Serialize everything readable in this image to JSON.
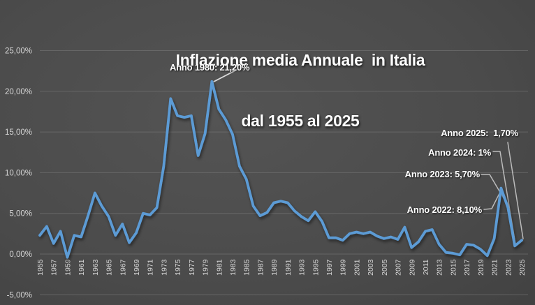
{
  "title": {
    "line1": "Inflazione media Annuale  in Italia",
    "line2": "dal 1955 al 2025"
  },
  "chart_data": {
    "type": "line",
    "series_name": "Inflazione media annuale in Italia",
    "x": [
      1955,
      1956,
      1957,
      1958,
      1959,
      1960,
      1961,
      1962,
      1963,
      1964,
      1965,
      1966,
      1967,
      1968,
      1969,
      1970,
      1971,
      1972,
      1973,
      1974,
      1975,
      1976,
      1977,
      1978,
      1979,
      1980,
      1981,
      1982,
      1983,
      1984,
      1985,
      1986,
      1987,
      1988,
      1989,
      1990,
      1991,
      1992,
      1993,
      1994,
      1995,
      1996,
      1997,
      1998,
      1999,
      2000,
      2001,
      2002,
      2003,
      2004,
      2005,
      2006,
      2007,
      2008,
      2009,
      2010,
      2011,
      2012,
      2013,
      2014,
      2015,
      2016,
      2017,
      2018,
      2019,
      2020,
      2021,
      2022,
      2023,
      2024,
      2025
    ],
    "values": [
      2.3,
      3.4,
      1.3,
      2.8,
      -0.4,
      2.3,
      2.1,
      4.7,
      7.5,
      5.9,
      4.6,
      2.3,
      3.7,
      1.4,
      2.6,
      5.0,
      4.8,
      5.7,
      10.8,
      19.1,
      17.0,
      16.8,
      17.0,
      12.1,
      14.8,
      21.2,
      17.8,
      16.5,
      14.7,
      10.8,
      9.2,
      5.9,
      4.7,
      5.1,
      6.3,
      6.5,
      6.3,
      5.3,
      4.6,
      4.1,
      5.2,
      4.0,
      2.0,
      2.0,
      1.7,
      2.5,
      2.7,
      2.5,
      2.7,
      2.2,
      1.9,
      2.1,
      1.8,
      3.3,
      0.8,
      1.5,
      2.8,
      3.0,
      1.2,
      0.2,
      0.1,
      -0.1,
      1.2,
      1.1,
      0.6,
      -0.2,
      1.9,
      8.1,
      5.7,
      1.0,
      1.7
    ],
    "title": "Inflazione media Annuale in Italia dal 1955 al 2025",
    "xlabel": "",
    "ylabel": "",
    "ylim": [
      -5,
      25
    ],
    "grid": true,
    "legend_position": "none",
    "y_axis": {
      "tick_labels": [
        "25,00%",
        "20,00%",
        "15,00%",
        "10,00%",
        "5,00%",
        "0,00%",
        "-5,00%"
      ],
      "tick_values": [
        25,
        20,
        15,
        10,
        5,
        0,
        -5
      ]
    },
    "x_axis": {
      "tick_labels": [
        "1955",
        "1957",
        "1959",
        "1961",
        "1963",
        "1965",
        "1967",
        "1969",
        "1971",
        "1973",
        "1975",
        "1977",
        "1979",
        "1981",
        "1983",
        "1985",
        "1987",
        "1989",
        "1991",
        "1993",
        "1995",
        "1997",
        "1999",
        "2001",
        "2003",
        "2005",
        "2007",
        "2009",
        "2011",
        "2013",
        "2015",
        "2017",
        "2019",
        "2021",
        "2023",
        "2025"
      ]
    },
    "annotated_points": [
      {
        "year": 1980,
        "value": 21.2
      },
      {
        "year": 2022,
        "value": 8.1
      },
      {
        "year": 2023,
        "value": 5.7
      },
      {
        "year": 2024,
        "value": 1.0
      },
      {
        "year": 2025,
        "value": 1.7
      }
    ]
  },
  "annotations": [
    {
      "text": "Anno 1980: 21,20%"
    },
    {
      "text": "Anno 2025:  1,70%"
    },
    {
      "text": "Anno 2024: 1%"
    },
    {
      "text": "Anno 2023: 5,70%"
    },
    {
      "text": "Anno 2022: 8,10%"
    }
  ],
  "colors": {
    "line": "#5b9bd5",
    "gridline": "#8a8a8a",
    "tick_text": "#d6d6d6",
    "title_text": "#ffffff",
    "annotation_text": "#ffffff",
    "leader_line": "#c6c6c6",
    "leader_line_1980": "#e6e6e6",
    "background_center": "#545454",
    "background_edge": "#2e2e2e"
  }
}
